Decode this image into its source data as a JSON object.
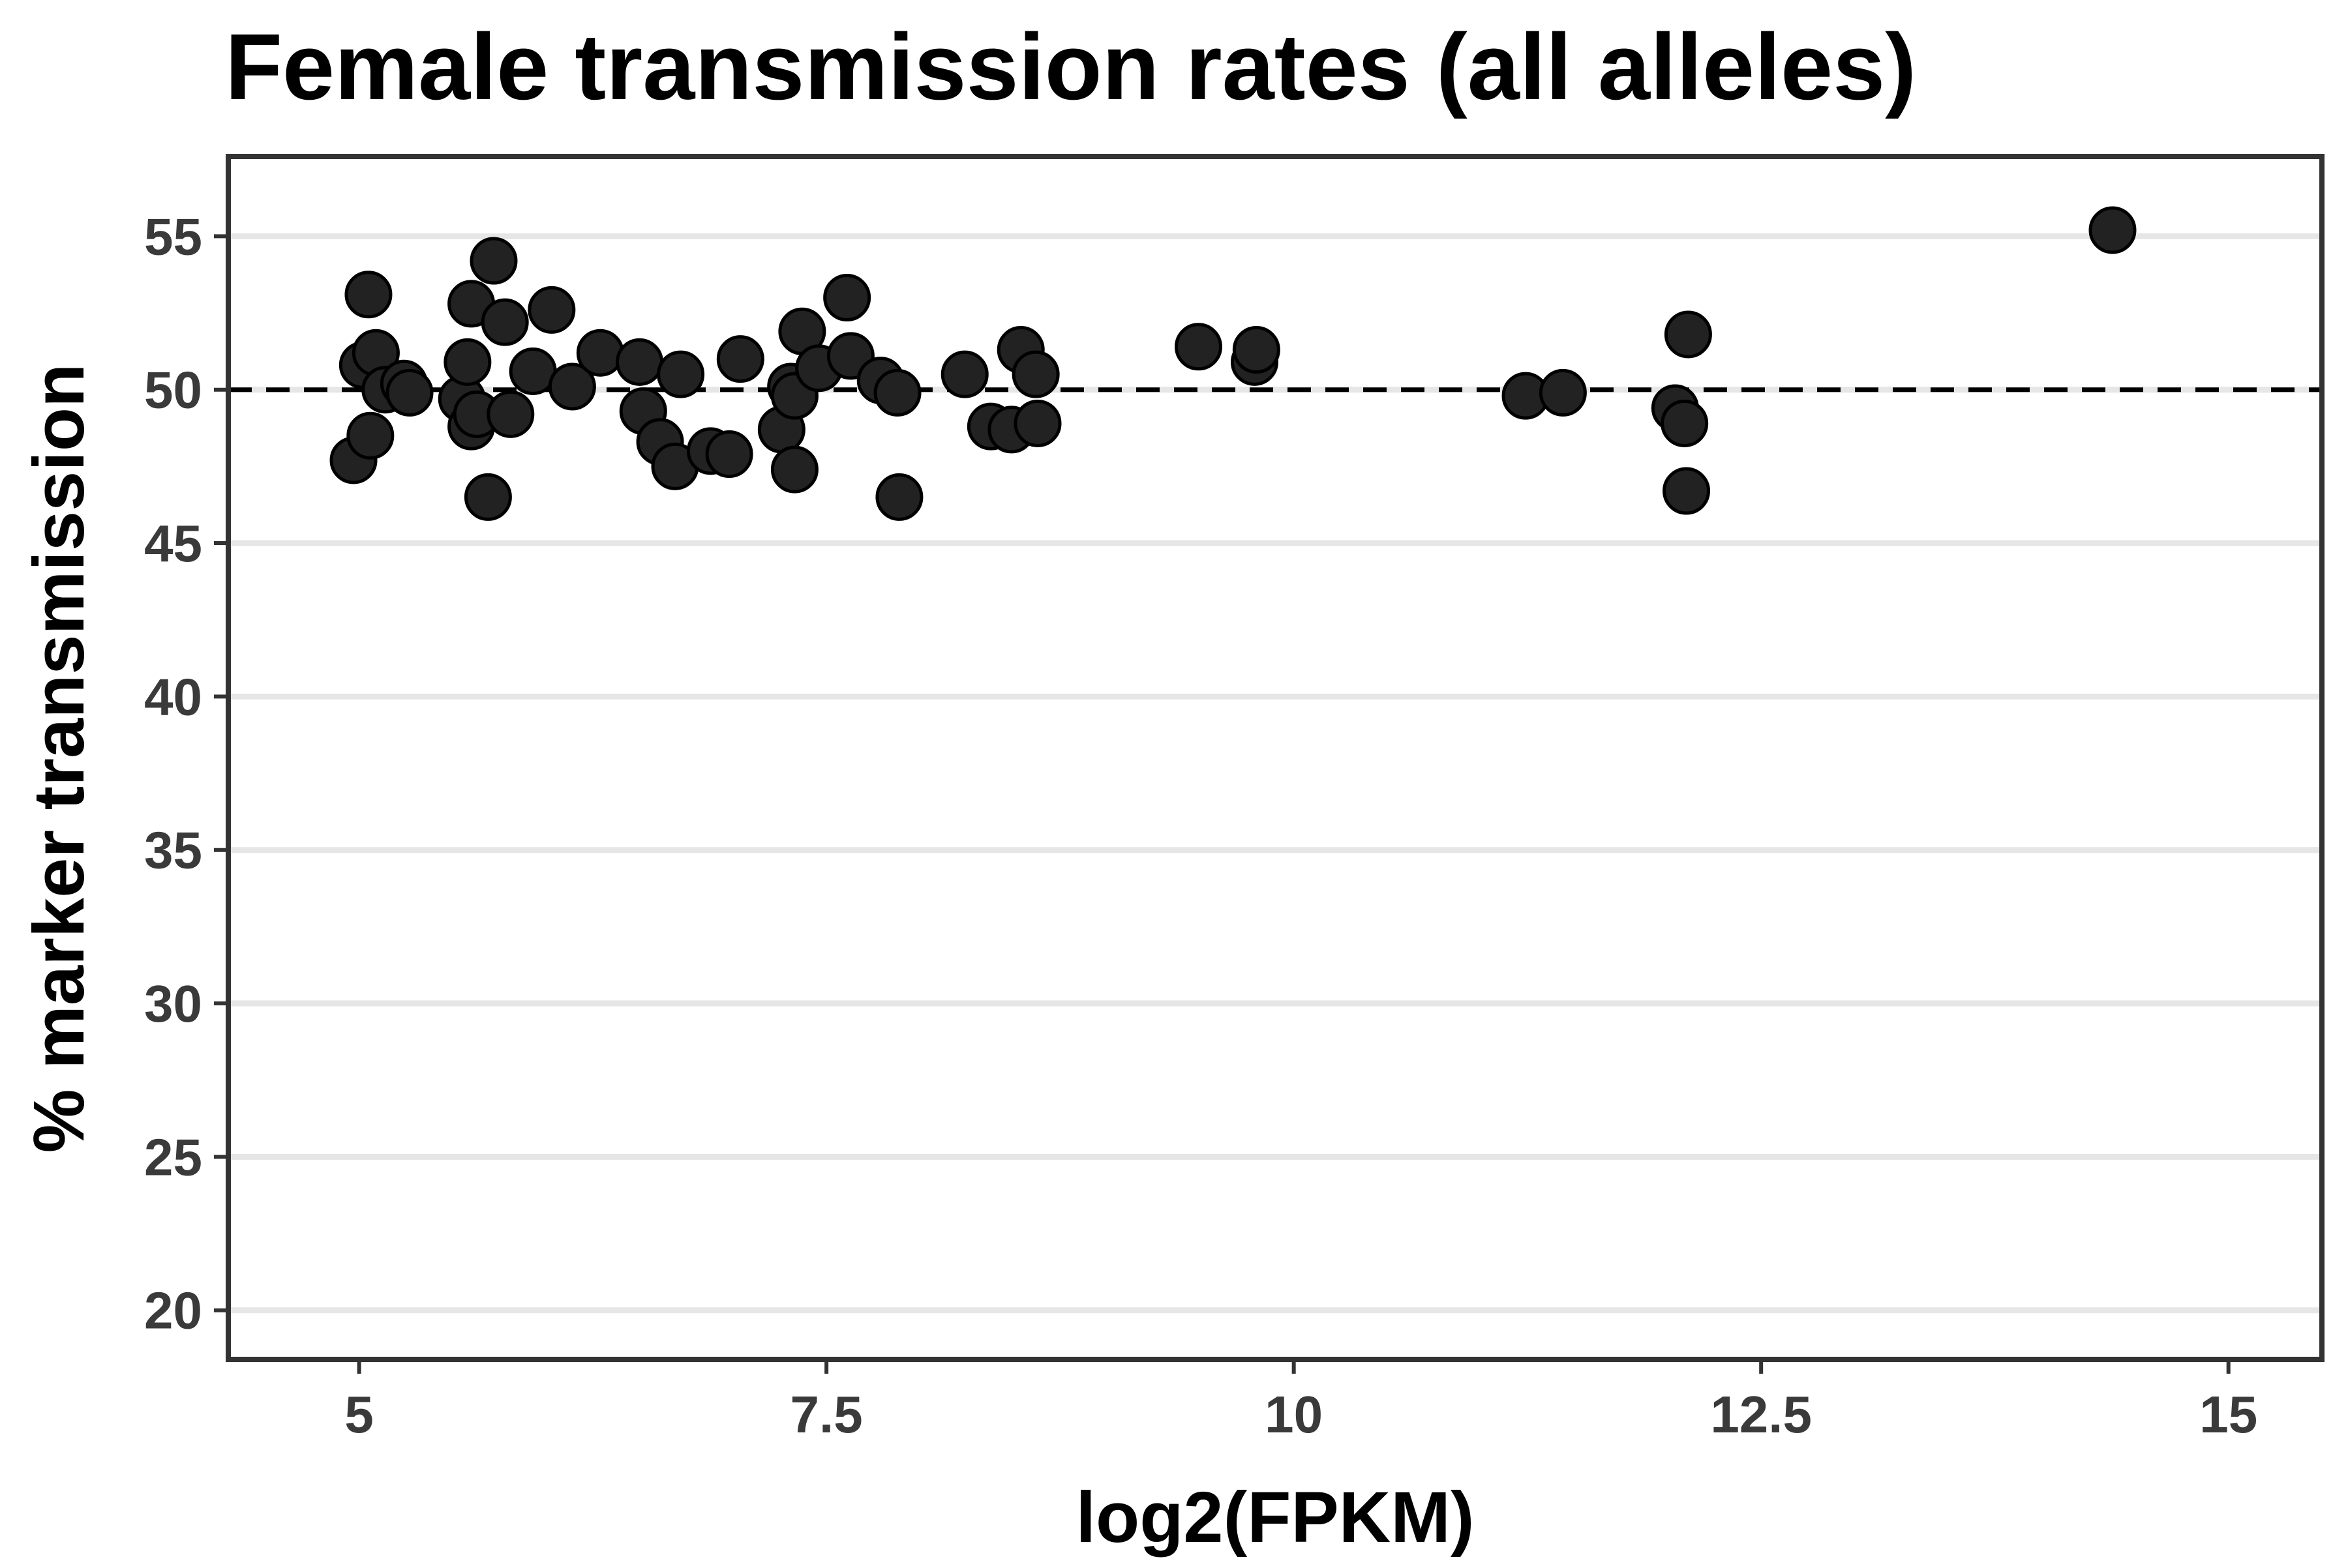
{
  "chart_data": {
    "type": "scatter",
    "title": "Female transmission rates (all alleles)",
    "xlabel": "log2(FPKM)",
    "ylabel": "% marker transmission",
    "xlim": [
      4.3,
      15.5
    ],
    "ylim": [
      18.4,
      57.6
    ],
    "x_ticks": [
      5,
      7.5,
      10,
      12.5,
      15
    ],
    "x_tick_labels": [
      "5",
      "7.5",
      "10",
      "12.5",
      "15"
    ],
    "y_ticks": [
      20,
      25,
      30,
      35,
      40,
      45,
      50,
      55
    ],
    "y_tick_labels": [
      "20",
      "25",
      "30",
      "35",
      "40",
      "45",
      "50",
      "55"
    ],
    "grid": "horizontal-major",
    "reference_line": {
      "y": 50,
      "style": "dashed",
      "color": "#000000"
    },
    "point_color": "#222222",
    "points": [
      {
        "x": 4.97,
        "y": 47.7
      },
      {
        "x": 5.02,
        "y": 50.8
      },
      {
        "x": 5.05,
        "y": 53.1
      },
      {
        "x": 5.06,
        "y": 48.5
      },
      {
        "x": 5.09,
        "y": 51.2
      },
      {
        "x": 5.14,
        "y": 50.0
      },
      {
        "x": 5.24,
        "y": 50.2
      },
      {
        "x": 5.27,
        "y": 49.9
      },
      {
        "x": 5.55,
        "y": 49.7
      },
      {
        "x": 5.58,
        "y": 50.9
      },
      {
        "x": 5.6,
        "y": 52.8
      },
      {
        "x": 5.6,
        "y": 48.8
      },
      {
        "x": 5.63,
        "y": 49.2
      },
      {
        "x": 5.69,
        "y": 46.5
      },
      {
        "x": 5.72,
        "y": 54.2
      },
      {
        "x": 5.78,
        "y": 52.2
      },
      {
        "x": 5.81,
        "y": 49.2
      },
      {
        "x": 5.93,
        "y": 50.6
      },
      {
        "x": 6.03,
        "y": 52.6
      },
      {
        "x": 6.14,
        "y": 50.1
      },
      {
        "x": 6.29,
        "y": 51.2
      },
      {
        "x": 6.5,
        "y": 50.9
      },
      {
        "x": 6.52,
        "y": 49.3
      },
      {
        "x": 6.61,
        "y": 48.3
      },
      {
        "x": 6.69,
        "y": 47.5
      },
      {
        "x": 6.72,
        "y": 50.5
      },
      {
        "x": 6.88,
        "y": 48.0
      },
      {
        "x": 6.98,
        "y": 47.9
      },
      {
        "x": 7.04,
        "y": 51.0
      },
      {
        "x": 7.26,
        "y": 48.7
      },
      {
        "x": 7.31,
        "y": 50.1
      },
      {
        "x": 7.33,
        "y": 49.8
      },
      {
        "x": 7.33,
        "y": 47.4
      },
      {
        "x": 7.37,
        "y": 51.9
      },
      {
        "x": 7.46,
        "y": 50.7
      },
      {
        "x": 7.61,
        "y": 53.0
      },
      {
        "x": 7.63,
        "y": 51.1
      },
      {
        "x": 7.79,
        "y": 50.3
      },
      {
        "x": 7.88,
        "y": 49.9
      },
      {
        "x": 7.89,
        "y": 46.5
      },
      {
        "x": 8.24,
        "y": 50.5
      },
      {
        "x": 8.38,
        "y": 48.8
      },
      {
        "x": 8.49,
        "y": 48.7
      },
      {
        "x": 8.54,
        "y": 51.3
      },
      {
        "x": 8.62,
        "y": 50.5
      },
      {
        "x": 8.63,
        "y": 48.9
      },
      {
        "x": 9.49,
        "y": 51.4
      },
      {
        "x": 9.79,
        "y": 50.9
      },
      {
        "x": 9.8,
        "y": 51.3
      },
      {
        "x": 11.24,
        "y": 49.8
      },
      {
        "x": 11.44,
        "y": 49.9
      },
      {
        "x": 12.04,
        "y": 49.4
      },
      {
        "x": 12.09,
        "y": 48.9
      },
      {
        "x": 12.1,
        "y": 46.7
      },
      {
        "x": 12.11,
        "y": 51.8
      },
      {
        "x": 14.38,
        "y": 55.2
      }
    ]
  }
}
